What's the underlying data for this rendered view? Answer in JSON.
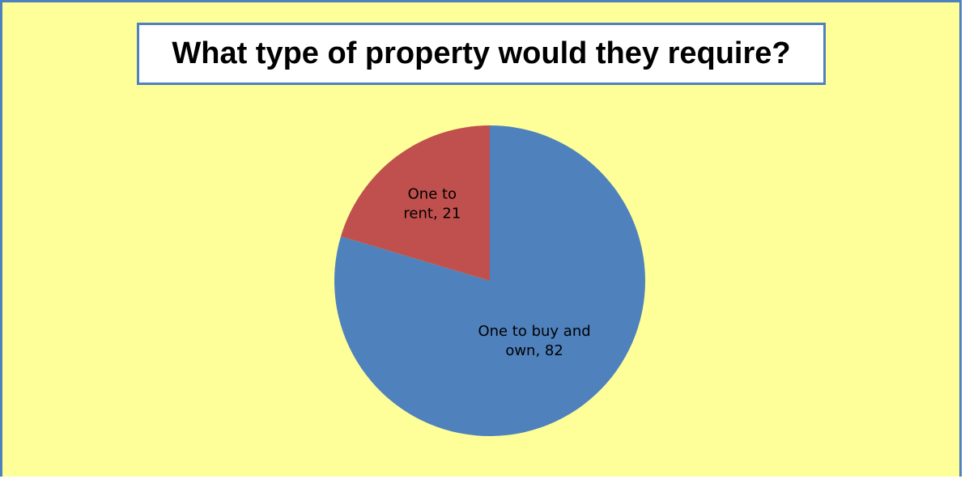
{
  "chart_data": {
    "type": "pie",
    "title": "What type of property would they require?",
    "categories": [
      "One to buy and own",
      "One to rent"
    ],
    "values": [
      82,
      21
    ],
    "colors": [
      "#4f81bd",
      "#c0504d"
    ],
    "data_labels": [
      [
        "One to buy and",
        "own, 82"
      ],
      [
        "One to",
        "rent, 21"
      ]
    ],
    "legend": "none"
  },
  "theme": {
    "background": "#ffff99",
    "border": "#4f81bd"
  }
}
